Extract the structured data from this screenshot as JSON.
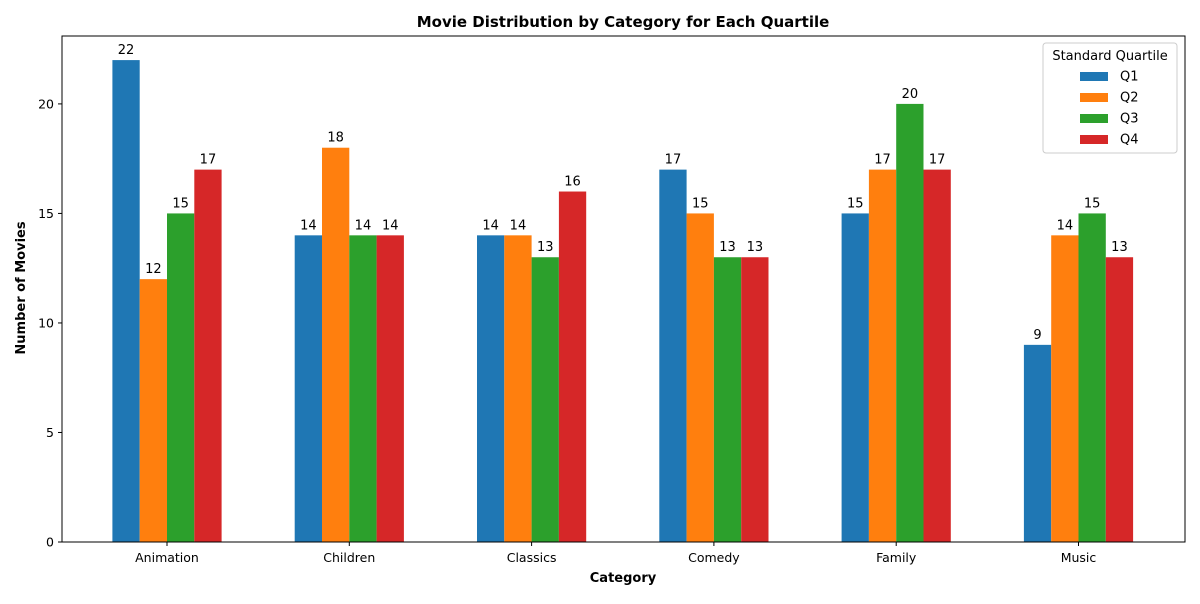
{
  "chart_data": {
    "type": "bar",
    "title": "Movie Distribution by Category for Each Quartile",
    "xlabel": "Category",
    "ylabel": "Number of Movies",
    "categories": [
      "Animation",
      "Children",
      "Classics",
      "Comedy",
      "Family",
      "Music"
    ],
    "series": [
      {
        "name": "Q1",
        "color": "#1f77b4",
        "values": [
          22,
          14,
          14,
          17,
          15,
          9
        ]
      },
      {
        "name": "Q2",
        "color": "#ff7f0e",
        "values": [
          12,
          18,
          14,
          15,
          17,
          14
        ]
      },
      {
        "name": "Q3",
        "color": "#2ca02c",
        "values": [
          15,
          14,
          13,
          13,
          20,
          15
        ]
      },
      {
        "name": "Q4",
        "color": "#d62728",
        "values": [
          17,
          14,
          16,
          13,
          17,
          13
        ]
      }
    ],
    "ylim": [
      0,
      23.1
    ],
    "yticks": [
      0,
      5,
      10,
      15,
      20
    ],
    "legend": {
      "title": "Standard Quartile",
      "position": "top-right"
    },
    "grid": false
  }
}
